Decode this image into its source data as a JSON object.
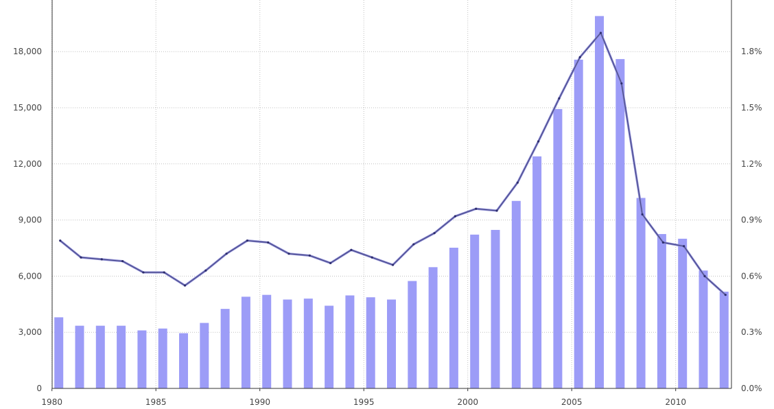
{
  "chart_data": {
    "type": "bar",
    "x": [
      1980,
      1981,
      1982,
      1983,
      1984,
      1985,
      1986,
      1987,
      1988,
      1989,
      1990,
      1991,
      1992,
      1993,
      1994,
      1995,
      1996,
      1997,
      1998,
      1999,
      2000,
      2001,
      2002,
      2003,
      2004,
      2005,
      2006,
      2007,
      2008,
      2009,
      2010,
      2011,
      2012
    ],
    "x_ticks": [
      "1980",
      "1985",
      "1990",
      "1995",
      "2000",
      "2005",
      "2010"
    ],
    "xlim": [
      1980,
      2012
    ],
    "ylim": [
      0,
      20000
    ],
    "y_ticks": [
      "0",
      "3,000",
      "6,000",
      "9,000",
      "12,000",
      "15,000",
      "18,000"
    ],
    "y2lim": [
      0,
      0.02
    ],
    "y2_ticks": [
      "0.0%",
      "0.3%",
      "0.6%",
      "0.9%",
      "1.2%",
      "1.5%",
      "1.8%"
    ],
    "grid": true,
    "colors": {
      "bar": "#9c9cf7",
      "line": "#4a4a8c",
      "grid": "#bfbfbf"
    },
    "series": [
      {
        "type": "bar",
        "axis": "left",
        "values": [
          3800,
          3350,
          3350,
          3350,
          3100,
          3200,
          2950,
          3500,
          4250,
          4900,
          5000,
          4750,
          4800,
          4420,
          4970,
          4870,
          4750,
          5740,
          6480,
          7520,
          8220,
          8470,
          10020,
          12400,
          14930,
          17570,
          19900,
          17600,
          10180,
          8250,
          8000,
          6300,
          5170
        ]
      },
      {
        "type": "line",
        "axis": "right",
        "values": [
          0.0079,
          0.007,
          0.0069,
          0.0068,
          0.0062,
          0.0062,
          0.0055,
          0.0063,
          0.0072,
          0.0079,
          0.0078,
          0.0072,
          0.0071,
          0.0067,
          0.0074,
          0.007,
          0.0066,
          0.0077,
          0.0083,
          0.0092,
          0.0096,
          0.0095,
          0.011,
          0.0132,
          0.0155,
          0.0177,
          0.019,
          0.0163,
          0.0093,
          0.0078,
          0.0076,
          0.006,
          0.005
        ]
      }
    ]
  }
}
